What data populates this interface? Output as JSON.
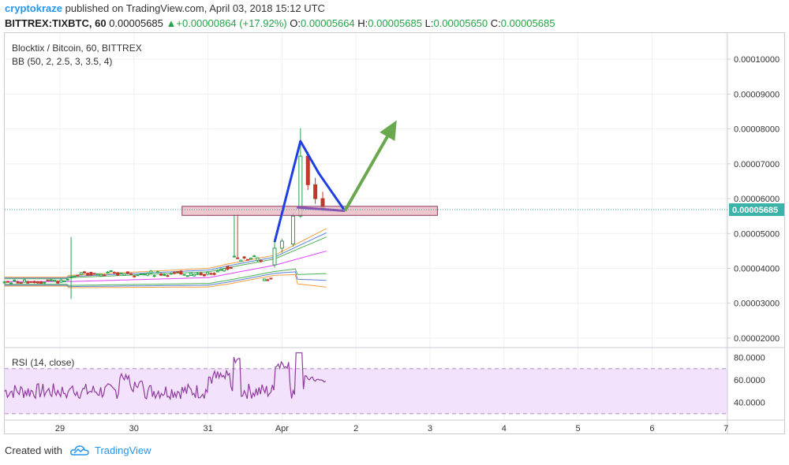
{
  "header": {
    "user": "cryptokraze",
    "published": "published on TradingView.com, April 03, 2018 15:12 UTC",
    "symbol": "BITTREX:TIXBTC, 60",
    "last": "0.00005685",
    "change": "+0.00000864 (+17.92%)",
    "ohlc": {
      "o_label": "O:",
      "o": "0.00005664",
      "h_label": "H:",
      "h": "0.00005685",
      "l_label": "L:",
      "l": "0.00005650",
      "c_label": "C:",
      "c": "0.00005685"
    }
  },
  "pane": {
    "title": "Blocktix / Bitcoin, 60, BITTREX",
    "indicator": "BB (50, 2, 2.5, 3, 3.5, 4)",
    "rsi_title": "RSI (14, close)",
    "price_tag": "0.00005685"
  },
  "footer": {
    "created": "Created with",
    "brand": "TradingView"
  },
  "colors": {
    "up": "#26a34a",
    "down": "#c0392b",
    "candle_up_fill": "#ffffff",
    "bb_orange": "#f59e3d",
    "bb_green": "#4caf50",
    "bb_blue": "#5b7fdc",
    "basis": "#e040fb",
    "rsi_line": "#8e3c9e",
    "rsi_band": "#f3e2fb",
    "pattern_blue": "#1f3fe0",
    "arrow_green": "#6aa84f",
    "zone_fill": "#e8b4bd",
    "zone_stroke": "#8b3a62"
  },
  "chart_data": [
    {
      "type": "candlestick",
      "title": "Blocktix / Bitcoin, 60, BITTREX",
      "y_ticks": [
        "0.00010000",
        "0.00009000",
        "0.00008000",
        "0.00007000",
        "0.00006000",
        "0.00005000",
        "0.00004000",
        "0.00003000",
        "0.00002000"
      ],
      "ylim": [
        1.75e-05,
        0.0001075
      ],
      "x_ticks": [
        "29",
        "30",
        "31",
        "Apr",
        "2",
        "3",
        "4",
        "5",
        "6",
        "7"
      ],
      "x_tick_days": [
        0,
        1,
        2,
        3,
        4,
        5,
        6,
        7,
        8,
        9
      ],
      "last_price": 5.685e-05,
      "candles_day_range": [
        -0.75,
        3.6
      ],
      "segments": [
        {
          "from": -0.75,
          "to": 2.85,
          "mid": 3.62e-05,
          "note": "consolidation"
        },
        {
          "day": 2.9,
          "o": 4.1e-05,
          "h": 4.75e-05,
          "l": 4.02e-05,
          "c": 4.58e-05
        },
        {
          "day": 3.0,
          "o": 4.58e-05,
          "h": 4.85e-05,
          "l": 4.45e-05,
          "c": 4.78e-05
        },
        {
          "day": 3.15,
          "o": 4.7e-05,
          "h": 5.6e-05,
          "l": 4.62e-05,
          "c": 5.5e-05
        },
        {
          "day": 3.25,
          "o": 5.5e-05,
          "h": 8.02e-05,
          "l": 5.45e-05,
          "c": 7.22e-05
        },
        {
          "day": 3.35,
          "o": 7.22e-05,
          "h": 7.35e-05,
          "l": 6.25e-05,
          "c": 6.4e-05
        },
        {
          "day": 3.45,
          "o": 6.4e-05,
          "h": 6.6e-05,
          "l": 5.85e-05,
          "c": 6e-05
        },
        {
          "day": 3.55,
          "o": 6e-05,
          "h": 6.2e-05,
          "l": 5.65e-05,
          "c": 5.68e-05
        }
      ],
      "annotations": {
        "support_zone": {
          "from_day": 1.65,
          "to_day": 5.1,
          "low": 5.52e-05,
          "high": 5.78e-05
        },
        "pattern": [
          [
            2.9,
            4.75e-05
          ],
          [
            3.25,
            7.65e-05
          ],
          [
            3.5,
            6.72e-05
          ],
          [
            3.85,
            5.65e-05
          ],
          [
            3.2,
            5.75e-05
          ]
        ],
        "arrow": {
          "from": [
            3.85,
            5.65e-05
          ],
          "to": [
            4.55,
            8.25e-05
          ]
        }
      }
    },
    {
      "type": "line",
      "title": "RSI (14, close)",
      "y_ticks": [
        "80.0000",
        "60.0000",
        "40.0000"
      ],
      "ylim": [
        25,
        88
      ],
      "band": [
        30,
        70
      ],
      "x_day_range": [
        -0.75,
        3.6
      ]
    }
  ]
}
